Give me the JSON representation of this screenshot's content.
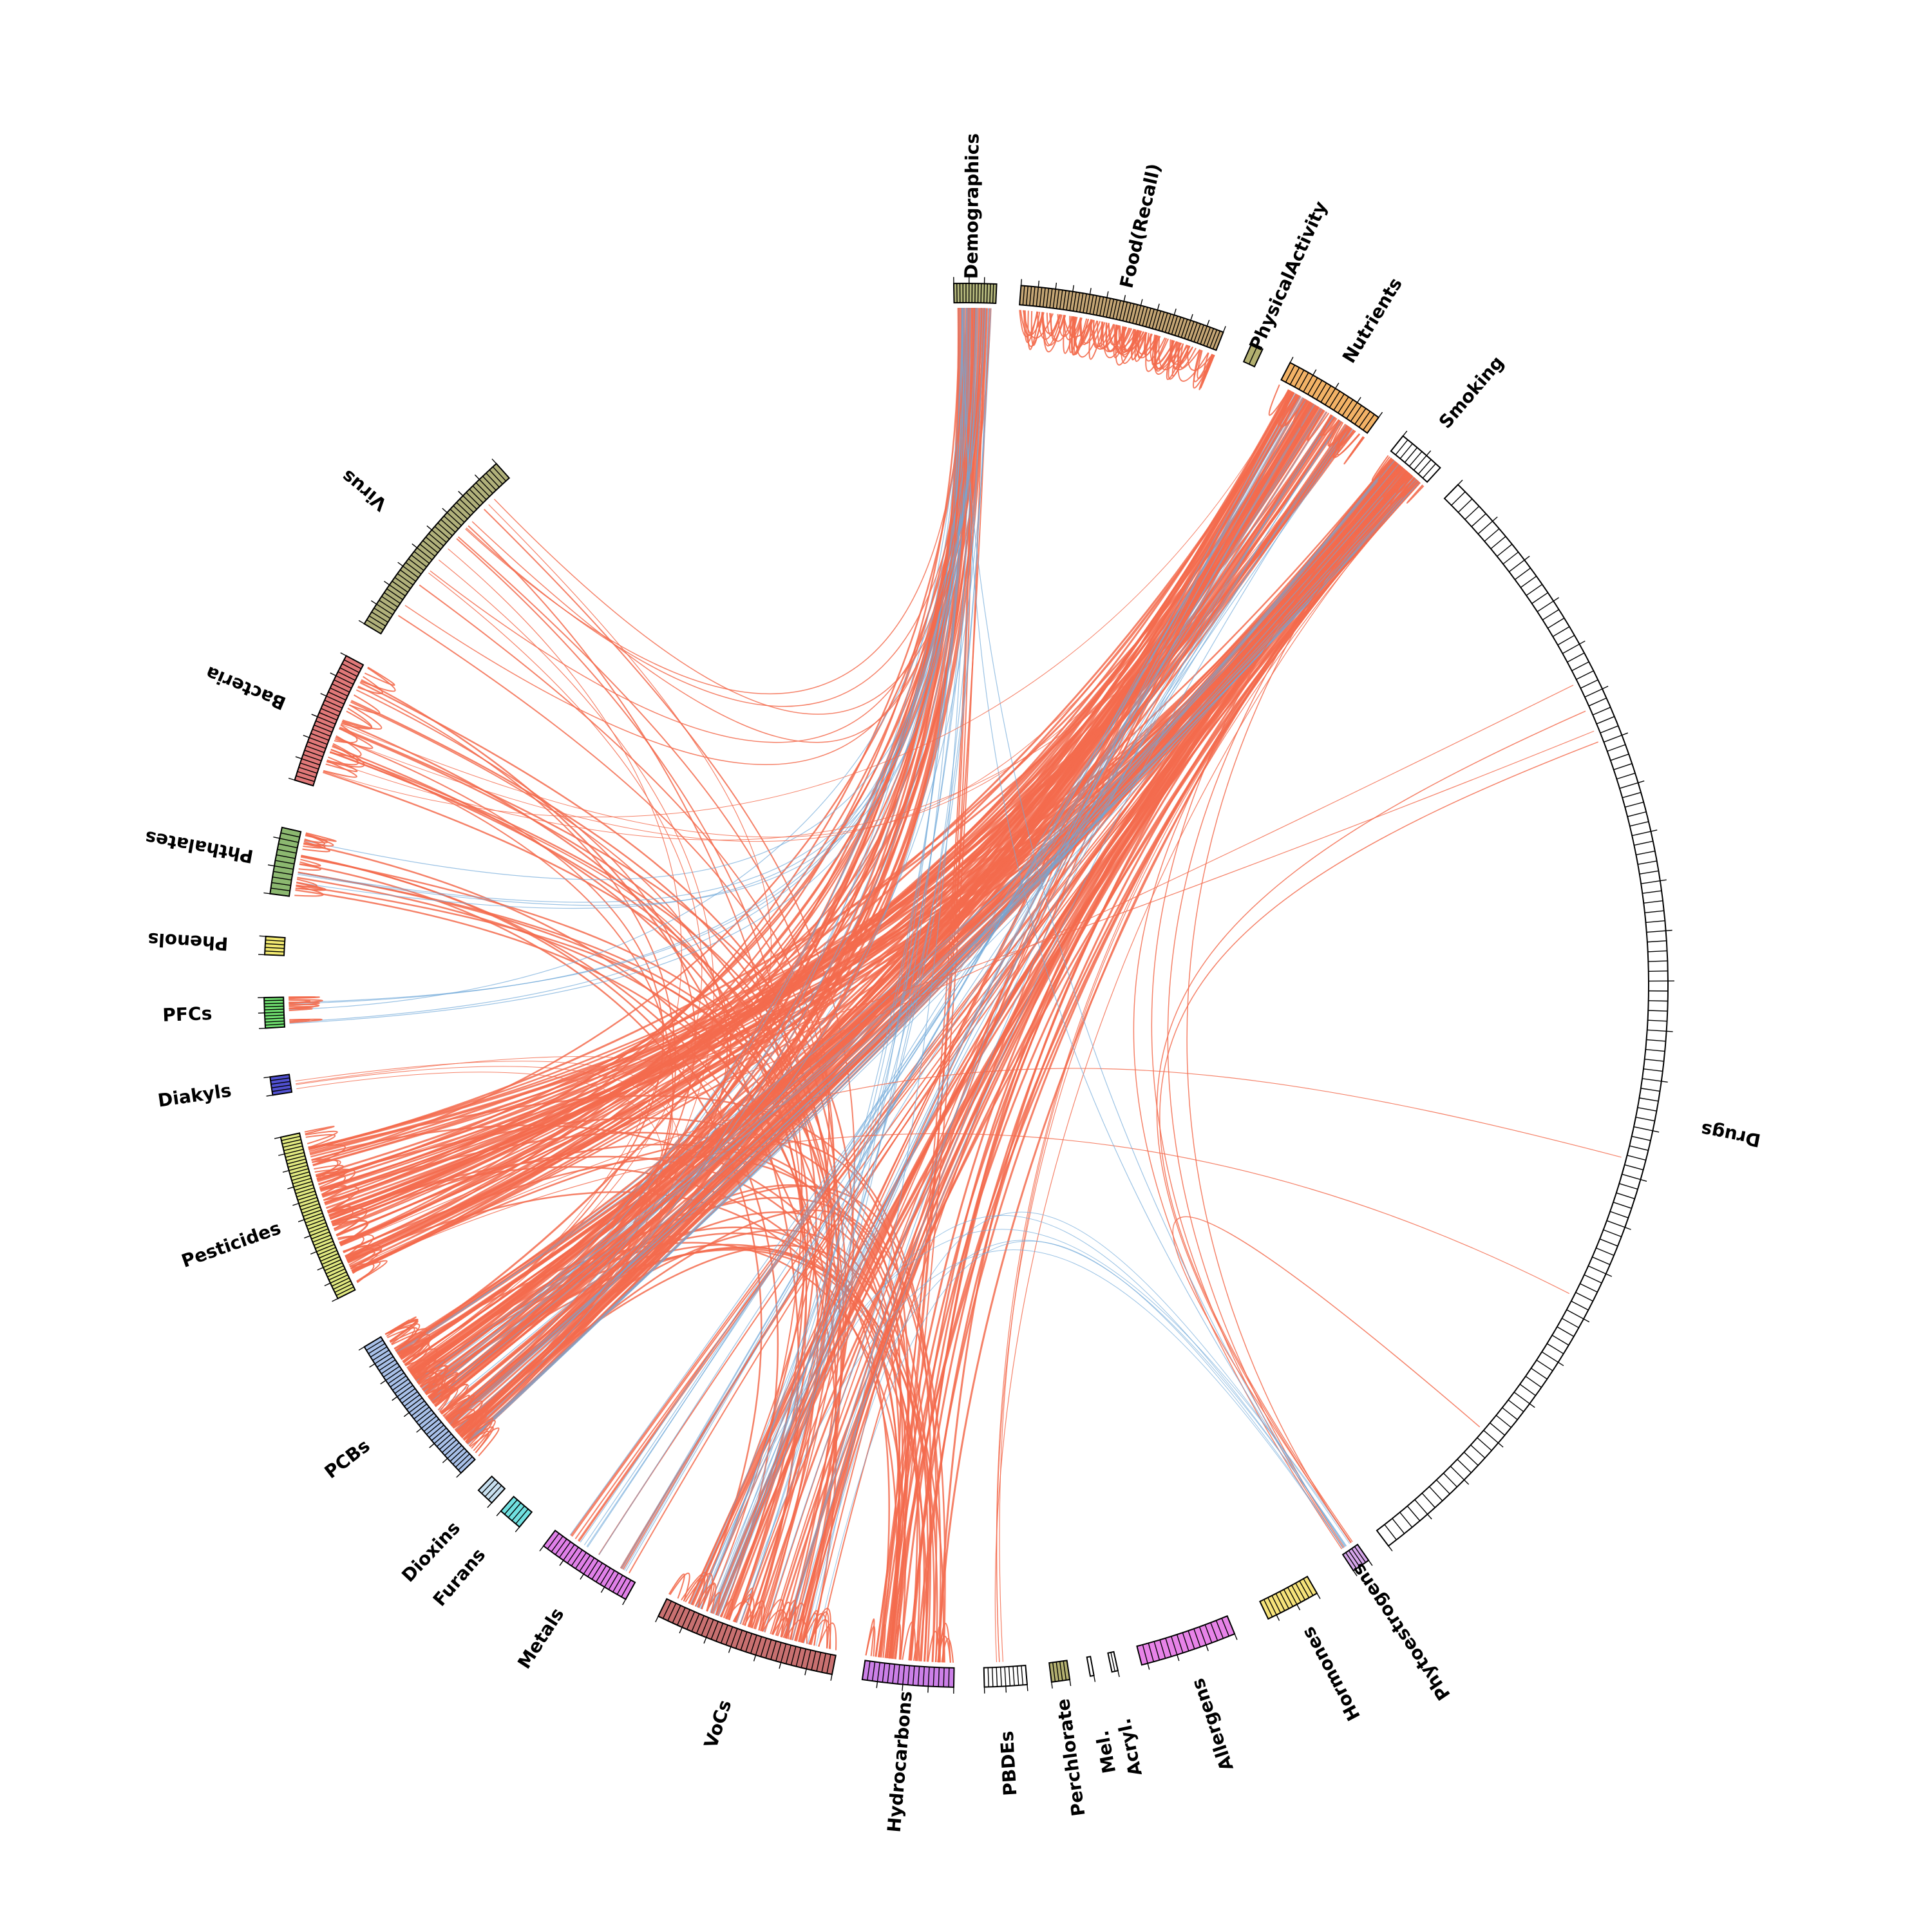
{
  "categories": [
    {
      "label": "Demographics",
      "color": "#b2b57a",
      "ticks": 14
    },
    {
      "label": "Food(Recall)",
      "color": "#c4a574",
      "ticks": 60
    },
    {
      "label": "PhysicalActivity",
      "color": "#b3b070",
      "ticks": 2
    },
    {
      "label": "Nutrients",
      "color": "#f2b266",
      "ticks": 20
    },
    {
      "label": "Smoking",
      "color": "#ffffff",
      "ticks": 8
    },
    {
      "label": "Drugs",
      "color": "#ffffff",
      "ticks": 120
    },
    {
      "label": "Phytoestrogens",
      "color": "#d6a6ea",
      "ticks": 5
    },
    {
      "label": "Hormones",
      "color": "#f5e27a",
      "ticks": 12
    },
    {
      "label": "Allergens",
      "color": "#e783e8",
      "ticks": 16
    },
    {
      "label": "Acryl.",
      "color": "#ffffff",
      "ticks": 2
    },
    {
      "label": "Mel.",
      "color": "#ffffff",
      "ticks": 1
    },
    {
      "label": "Perchlorate",
      "color": "#b3b070",
      "ticks": 5
    },
    {
      "label": "PBDEs",
      "color": "#ffffff",
      "ticks": 10
    },
    {
      "label": "Hydrocarbons",
      "color": "#cc80e8",
      "ticks": 18
    },
    {
      "label": "VoCs",
      "color": "#c87070",
      "ticks": 35
    },
    {
      "label": "Metals",
      "color": "#e080e8",
      "ticks": 20
    },
    {
      "label": "Furans",
      "color": "#70e0e0",
      "ticks": 5
    },
    {
      "label": "Dioxins",
      "color": "#c8e0f0",
      "ticks": 4
    },
    {
      "label": "PCBs",
      "color": "#a8c0e8",
      "ticks": 40
    },
    {
      "label": "Pesticides",
      "color": "#e0e880",
      "ticks": 50
    },
    {
      "label": "Diakyls",
      "color": "#5050d0",
      "ticks": 5
    },
    {
      "label": "PFCs",
      "color": "#70e070",
      "ticks": 10
    },
    {
      "label": "Phenols",
      "color": "#f0e870",
      "ticks": 5
    },
    {
      "label": "Phthalates",
      "color": "#8cb870",
      "ticks": 12
    },
    {
      "label": "Bacteria",
      "color": "#e07878",
      "ticks": 30
    },
    {
      "label": "Virus",
      "color": "#b0b07a",
      "ticks": 45
    }
  ],
  "edge_colors": {
    "positive": "#f36b4e",
    "negative": "#6fa8d8"
  }
}
